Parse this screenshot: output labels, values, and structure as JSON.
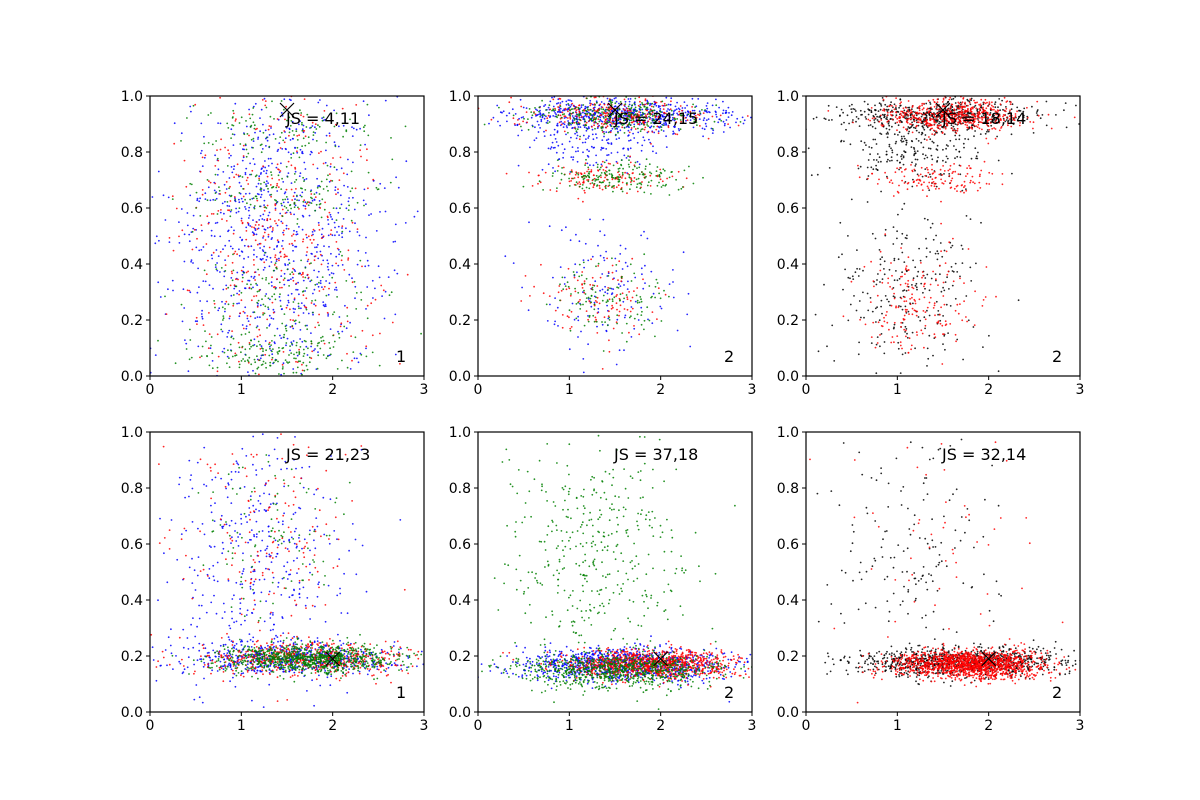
{
  "chart_data": [
    {
      "type": "scatter",
      "xlim": [
        0,
        3
      ],
      "ylim": [
        0,
        1
      ],
      "xticks": [
        "0",
        "1",
        "2",
        "3"
      ],
      "yticks": [
        "0.0",
        "0.2",
        "0.4",
        "0.6",
        "0.8",
        "1.0"
      ],
      "annotation": "JS = 4,11",
      "panel_label": "1",
      "marker": {
        "x": 1.5,
        "y": 0.95
      },
      "series": [
        {
          "color": "#0000ff",
          "count": 900,
          "clusters": [
            {
              "x": 1.4,
              "sx": 0.6,
              "y": 0.5,
              "sy": 0.3
            }
          ]
        },
        {
          "color": "#ff0000",
          "count": 450,
          "clusters": [
            {
              "x": 1.4,
              "sx": 0.55,
              "y": 0.5,
              "sy": 0.3
            }
          ]
        },
        {
          "color": "#008000",
          "count": 550,
          "clusters": [
            {
              "x": 1.4,
              "sx": 0.5,
              "y": 0.08,
              "sy": 0.05,
              "w": 0.35
            },
            {
              "x": 1.4,
              "sx": 0.5,
              "y": 0.3,
              "sy": 0.06,
              "w": 0.2
            },
            {
              "x": 1.4,
              "sx": 0.5,
              "y": 0.65,
              "sy": 0.05,
              "w": 0.25
            },
            {
              "x": 1.4,
              "sx": 0.5,
              "y": 0.88,
              "sy": 0.05,
              "w": 0.2
            }
          ]
        }
      ]
    },
    {
      "type": "scatter",
      "xlim": [
        0,
        3
      ],
      "ylim": [
        0,
        1
      ],
      "xticks": [
        "0",
        "1",
        "2",
        "3"
      ],
      "yticks": [
        "0.0",
        "0.2",
        "0.4",
        "0.6",
        "0.8",
        "1.0"
      ],
      "annotation": "JS = 24,15",
      "panel_label": "2",
      "marker": {
        "x": 1.5,
        "y": 0.95
      },
      "series": [
        {
          "color": "#0000ff",
          "count": 900,
          "clusters": [
            {
              "x": 1.6,
              "sx": 0.6,
              "y": 0.93,
              "sy": 0.03,
              "w": 0.7
            },
            {
              "x": 1.3,
              "sx": 0.4,
              "y": 0.82,
              "sy": 0.04,
              "w": 0.15
            },
            {
              "x": 1.3,
              "sx": 0.4,
              "y": 0.3,
              "sy": 0.12,
              "w": 0.15
            }
          ]
        },
        {
          "color": "#ff0000",
          "count": 550,
          "clusters": [
            {
              "x": 1.5,
              "sx": 0.5,
              "y": 0.93,
              "sy": 0.03,
              "w": 0.55
            },
            {
              "x": 1.4,
              "sx": 0.35,
              "y": 0.71,
              "sy": 0.03,
              "w": 0.25
            },
            {
              "x": 1.3,
              "sx": 0.35,
              "y": 0.27,
              "sy": 0.08,
              "w": 0.2
            }
          ]
        },
        {
          "color": "#008000",
          "count": 600,
          "clusters": [
            {
              "x": 1.5,
              "sx": 0.5,
              "y": 0.93,
              "sy": 0.03,
              "w": 0.5
            },
            {
              "x": 1.5,
              "sx": 0.35,
              "y": 0.71,
              "sy": 0.03,
              "w": 0.3
            },
            {
              "x": 1.4,
              "sx": 0.35,
              "y": 0.27,
              "sy": 0.07,
              "w": 0.2
            }
          ]
        }
      ]
    },
    {
      "type": "scatter",
      "xlim": [
        0,
        3
      ],
      "ylim": [
        0,
        1
      ],
      "xticks": [
        "0",
        "1",
        "2",
        "3"
      ],
      "yticks": [
        "0.0",
        "0.2",
        "0.4",
        "0.6",
        "0.8",
        "1.0"
      ],
      "annotation": "JS = 18,14",
      "panel_label": "2",
      "marker": {
        "x": 1.5,
        "y": 0.95
      },
      "series": [
        {
          "color": "#000000",
          "count": 1000,
          "clusters": [
            {
              "x": 1.4,
              "sx": 0.55,
              "y": 0.93,
              "sy": 0.03,
              "w": 0.55
            },
            {
              "x": 1.2,
              "sx": 0.45,
              "y": 0.8,
              "sy": 0.06,
              "w": 0.2
            },
            {
              "x": 1.1,
              "sx": 0.45,
              "y": 0.3,
              "sy": 0.15,
              "w": 0.25
            }
          ]
        },
        {
          "color": "#ff0000",
          "count": 900,
          "clusters": [
            {
              "x": 1.6,
              "sx": 0.4,
              "y": 0.93,
              "sy": 0.03,
              "w": 0.65
            },
            {
              "x": 1.4,
              "sx": 0.3,
              "y": 0.71,
              "sy": 0.03,
              "w": 0.15
            },
            {
              "x": 1.2,
              "sx": 0.3,
              "y": 0.25,
              "sy": 0.1,
              "w": 0.2
            }
          ]
        }
      ]
    },
    {
      "type": "scatter",
      "xlim": [
        0,
        3
      ],
      "ylim": [
        0,
        1
      ],
      "xticks": [
        "0",
        "1",
        "2",
        "3"
      ],
      "yticks": [
        "0.0",
        "0.2",
        "0.4",
        "0.6",
        "0.8",
        "1.0"
      ],
      "annotation": "JS = 21,23",
      "panel_label": "1",
      "marker": {
        "x": 2.0,
        "y": 0.19
      },
      "series": [
        {
          "color": "#0000ff",
          "count": 1000,
          "clusters": [
            {
              "x": 1.6,
              "sx": 0.6,
              "y": 0.19,
              "sy": 0.03,
              "w": 0.6
            },
            {
              "x": 1.2,
              "sx": 0.5,
              "y": 0.55,
              "sy": 0.25,
              "w": 0.4
            }
          ]
        },
        {
          "color": "#ff0000",
          "count": 700,
          "clusters": [
            {
              "x": 1.7,
              "sx": 0.6,
              "y": 0.19,
              "sy": 0.03,
              "w": 0.75
            },
            {
              "x": 1.2,
              "sx": 0.5,
              "y": 0.6,
              "sy": 0.25,
              "w": 0.25
            }
          ]
        },
        {
          "color": "#008000",
          "count": 1000,
          "clusters": [
            {
              "x": 1.7,
              "sx": 0.5,
              "y": 0.19,
              "sy": 0.025,
              "w": 0.9
            },
            {
              "x": 1.3,
              "sx": 0.4,
              "y": 0.65,
              "sy": 0.15,
              "w": 0.1
            }
          ]
        }
      ]
    },
    {
      "type": "scatter",
      "xlim": [
        0,
        3
      ],
      "ylim": [
        0,
        1
      ],
      "xticks": [
        "0",
        "1",
        "2",
        "3"
      ],
      "yticks": [
        "0.0",
        "0.2",
        "0.4",
        "0.6",
        "0.8",
        "1.0"
      ],
      "annotation": "JS = 37,18",
      "panel_label": "2",
      "marker": {
        "x": 2.0,
        "y": 0.19
      },
      "series": [
        {
          "color": "#0000ff",
          "count": 1000,
          "clusters": [
            {
              "x": 1.6,
              "sx": 0.6,
              "y": 0.17,
              "sy": 0.03
            }
          ]
        },
        {
          "color": "#ff0000",
          "count": 1000,
          "clusters": [
            {
              "x": 1.9,
              "sx": 0.45,
              "y": 0.17,
              "sy": 0.025
            }
          ]
        },
        {
          "color": "#008000",
          "count": 1200,
          "clusters": [
            {
              "x": 1.5,
              "sx": 0.55,
              "y": 0.15,
              "sy": 0.03,
              "w": 0.65
            },
            {
              "x": 1.3,
              "sx": 0.5,
              "y": 0.55,
              "sy": 0.22,
              "w": 0.35
            }
          ]
        }
      ]
    },
    {
      "type": "scatter",
      "xlim": [
        0,
        3
      ],
      "ylim": [
        0,
        1
      ],
      "xticks": [
        "0",
        "1",
        "2",
        "3"
      ],
      "yticks": [
        "0.0",
        "0.2",
        "0.4",
        "0.6",
        "0.8",
        "1.0"
      ],
      "annotation": "JS = 32,14",
      "panel_label": "2",
      "marker": {
        "x": 2.0,
        "y": 0.19
      },
      "series": [
        {
          "color": "#000000",
          "count": 1100,
          "clusters": [
            {
              "x": 1.7,
              "sx": 0.6,
              "y": 0.18,
              "sy": 0.025,
              "w": 0.85
            },
            {
              "x": 1.2,
              "sx": 0.5,
              "y": 0.55,
              "sy": 0.25,
              "w": 0.15
            }
          ]
        },
        {
          "color": "#ff0000",
          "count": 1500,
          "clusters": [
            {
              "x": 1.8,
              "sx": 0.4,
              "y": 0.17,
              "sy": 0.025,
              "w": 0.96
            },
            {
              "x": 1.5,
              "sx": 0.6,
              "y": 0.6,
              "sy": 0.25,
              "w": 0.04
            }
          ]
        }
      ]
    }
  ]
}
